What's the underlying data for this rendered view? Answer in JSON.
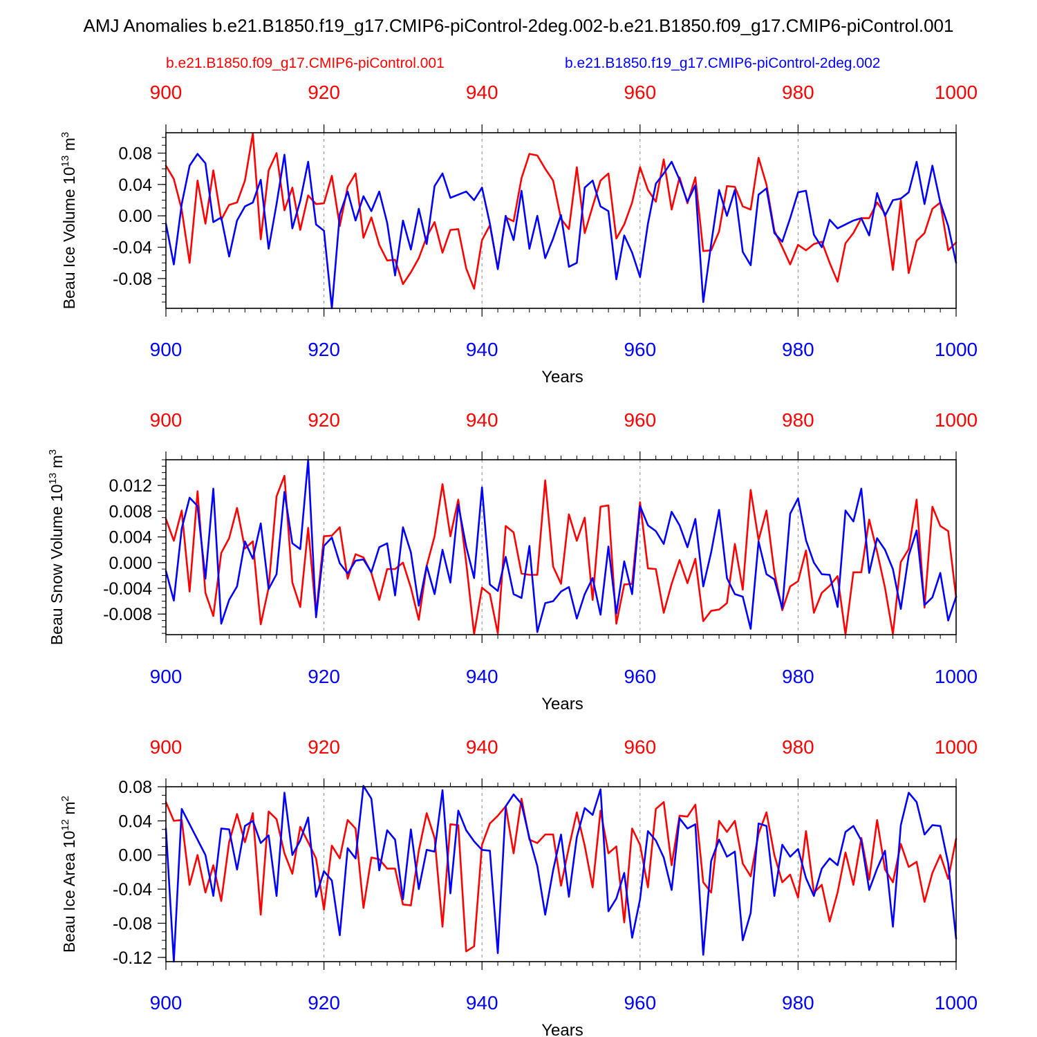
{
  "title": "AMJ Anomalies b.e21.B1850.f19_g17.CMIP6-piControl-2deg.002-b.e21.B1850.f09_g17.CMIP6-piControl.001",
  "legend": [
    {
      "name": "b.e21.B1850.f09_g17.CMIP6-piControl.001",
      "color": "#ff0000"
    },
    {
      "name": "b.e21.B1850.f19_g17.CMIP6-piControl-2deg.002",
      "color": "#0000ff"
    }
  ],
  "colors": {
    "red": "#ff0000",
    "blue": "#0000ff",
    "axis": "#000000",
    "grid": "#888888"
  },
  "chart_data": [
    {
      "type": "line",
      "id": "ice-volume",
      "ylabel_main": "Beau Ice Volume 10",
      "ylabel_exp": "13",
      "ylabel_unit": " m",
      "ylabel_unit_exp": "3",
      "xlabel": "Years",
      "xlim": [
        900,
        1000
      ],
      "ylim": [
        -0.118,
        0.106
      ],
      "xticks": [
        900,
        920,
        940,
        960,
        980,
        1000
      ],
      "xtick_labels": [
        "900",
        "920",
        "940",
        "960",
        "980",
        "1000"
      ],
      "yticks": [
        -0.08,
        -0.04,
        0.0,
        0.04,
        0.08
      ],
      "ytick_labels": [
        "-0.08",
        "-0.04",
        "0.00",
        "0.04",
        "0.08"
      ],
      "grid_x": [
        920,
        940,
        960,
        980
      ],
      "series": [
        {
          "name": "b.e21.B1850.f09_g17.CMIP6-piControl.001",
          "color": "#ff0000",
          "x0": 900,
          "values": [
            0.064,
            0.047,
            0.008,
            -0.06,
            0.045,
            -0.01,
            0.058,
            -0.005,
            0.014,
            0.017,
            0.045,
            0.105,
            -0.03,
            0.058,
            0.08,
            0.007,
            0.036,
            -0.018,
            0.026,
            0.015,
            0.016,
            0.051,
            -0.013,
            0.037,
            0.054,
            -0.028,
            -0.002,
            -0.037,
            -0.057,
            -0.056,
            -0.087,
            -0.072,
            -0.054,
            -0.027,
            -0.008,
            -0.047,
            -0.018,
            -0.017,
            -0.067,
            -0.093,
            -0.031,
            -0.012,
            -0.067,
            -0.002,
            -0.007,
            0.048,
            0.079,
            0.077,
            0.06,
            0.045,
            -0.004,
            -0.017,
            0.062,
            -0.022,
            0.012,
            0.045,
            0.054,
            -0.029,
            -0.011,
            0.017,
            0.062,
            0.033,
            0.018,
            0.072,
            0.008,
            0.049,
            0.016,
            0.049,
            -0.045,
            -0.044,
            -0.02,
            0.038,
            0.037,
            0.012,
            0.008,
            0.074,
            0.04,
            -0.019,
            -0.04,
            -0.062,
            -0.037,
            -0.044,
            -0.036,
            -0.033,
            -0.06,
            -0.084,
            -0.035,
            -0.022,
            -0.003,
            -0.003,
            0.017,
            0.003,
            -0.069,
            0.02,
            -0.073,
            -0.032,
            -0.022,
            0.009,
            0.017,
            -0.044,
            -0.034
          ]
        },
        {
          "name": "b.e21.B1850.f19_g17.CMIP6-piControl-2deg.002",
          "color": "#0000ff",
          "x0": 900,
          "values": [
            -0.01,
            -0.062,
            0.015,
            0.064,
            0.079,
            0.067,
            -0.008,
            -0.002,
            -0.052,
            -0.006,
            0.012,
            0.017,
            0.046,
            -0.042,
            0.015,
            0.078,
            -0.016,
            0.019,
            0.069,
            -0.011,
            -0.019,
            -0.118,
            0.002,
            0.031,
            -0.006,
            0.025,
            0.006,
            0.031,
            -0.009,
            -0.076,
            -0.006,
            -0.043,
            0.009,
            -0.036,
            0.038,
            0.054,
            0.023,
            0.027,
            0.031,
            0.02,
            0.036,
            -0.01,
            -0.068,
            0.0,
            -0.031,
            0.032,
            -0.042,
            0.0,
            -0.054,
            -0.029,
            0.001,
            -0.065,
            -0.06,
            0.036,
            0.045,
            0.012,
            0.006,
            -0.081,
            -0.025,
            -0.047,
            -0.078,
            -0.01,
            0.041,
            0.054,
            0.069,
            0.046,
            0.018,
            0.039,
            -0.11,
            -0.036,
            0.033,
            0.0,
            0.033,
            -0.046,
            -0.063,
            0.027,
            0.035,
            -0.022,
            -0.033,
            -0.003,
            0.03,
            0.032,
            -0.024,
            -0.04,
            -0.005,
            -0.016,
            -0.011,
            -0.006,
            -0.003,
            -0.025,
            0.029,
            0.0,
            0.02,
            0.022,
            0.03,
            0.069,
            0.015,
            0.064,
            0.017,
            -0.013,
            -0.06
          ]
        }
      ]
    },
    {
      "type": "line",
      "id": "snow-volume",
      "ylabel_main": "Beau Snow Volume 10",
      "ylabel_exp": "13",
      "ylabel_unit": " m",
      "ylabel_unit_exp": "3",
      "xlabel": "Years",
      "xlim": [
        900,
        1000
      ],
      "ylim": [
        -0.0112,
        0.016
      ],
      "xticks": [
        900,
        920,
        940,
        960,
        980,
        1000
      ],
      "xtick_labels": [
        "900",
        "920",
        "940",
        "960",
        "980",
        "1000"
      ],
      "yticks": [
        -0.008,
        -0.004,
        0.0,
        0.004,
        0.008,
        0.012
      ],
      "ytick_labels": [
        "-0.008",
        "-0.004",
        "0.000",
        "0.004",
        "0.008",
        "0.012"
      ],
      "grid_x": [
        920,
        940,
        960,
        980
      ],
      "series": [
        {
          "name": "b.e21.B1850.f09_g17.CMIP6-piControl.001",
          "color": "#ff0000",
          "x0": 900,
          "values": [
            0.0068,
            0.0034,
            0.0081,
            -0.0045,
            0.0111,
            -0.0047,
            -0.0083,
            0.0015,
            0.0038,
            0.0085,
            0.0022,
            0.0033,
            -0.0096,
            -0.0039,
            0.0103,
            0.0135,
            -0.0031,
            -0.0069,
            0.0054,
            -0.0081,
            0.0041,
            0.0042,
            0.0055,
            -0.0025,
            0.0013,
            0.0008,
            -0.0016,
            -0.0058,
            -0.001,
            -0.001,
            0.0,
            -0.0039,
            -0.0089,
            -0.0005,
            0.0041,
            0.0122,
            0.0041,
            0.0098,
            0.0,
            -0.0111,
            -0.0039,
            -0.0049,
            -0.011,
            0.0057,
            0.0047,
            -0.0017,
            -0.0019,
            -0.0019,
            0.0128,
            -0.0006,
            -0.0033,
            0.0075,
            0.0034,
            0.007,
            -0.0058,
            0.0087,
            0.0089,
            -0.0095,
            -0.0034,
            -0.0033,
            0.0094,
            -0.0009,
            -0.001,
            -0.0078,
            -0.0033,
            0.0004,
            -0.0032,
            0.0006,
            -0.0091,
            -0.0075,
            -0.0073,
            -0.0063,
            0.0029,
            -0.0042,
            0.0113,
            0.0035,
            0.0081,
            -0.0015,
            -0.0074,
            -0.0037,
            -0.0029,
            0.0019,
            -0.0078,
            -0.0047,
            -0.0036,
            -0.0021,
            -0.0112,
            -0.0015,
            -0.0015,
            0.0067,
            0.0017,
            -0.0039,
            -0.0111,
            0.0001,
            0.0021,
            0.0098,
            -0.007,
            0.0087,
            0.0057,
            0.0049,
            -0.0054
          ]
        },
        {
          "name": "b.e21.B1850.f19_g17.CMIP6-piControl-2deg.002",
          "color": "#0000ff",
          "x0": 900,
          "values": [
            -0.0013,
            -0.0059,
            0.0053,
            0.0101,
            0.0088,
            -0.0025,
            0.0115,
            -0.0095,
            -0.0058,
            -0.0037,
            0.0033,
            0.0006,
            0.0061,
            -0.0041,
            -0.0018,
            0.011,
            0.003,
            0.0021,
            0.016,
            -0.0085,
            0.0026,
            0.0039,
            -0.0001,
            -0.0017,
            0.0003,
            0.0005,
            -0.0015,
            0.0024,
            0.003,
            -0.0051,
            0.0055,
            0.0016,
            -0.0067,
            -0.0005,
            -0.0049,
            0.002,
            -0.0031,
            0.009,
            0.0025,
            -0.0024,
            0.0117,
            -0.0034,
            -0.0044,
            0.0009,
            -0.0049,
            -0.0055,
            0.0026,
            -0.0108,
            -0.0063,
            -0.006,
            -0.0045,
            -0.0038,
            -0.0087,
            -0.0049,
            -0.0024,
            -0.0081,
            0.0025,
            -0.0079,
            0.0002,
            -0.0049,
            0.0088,
            0.0058,
            0.0049,
            0.0029,
            0.0079,
            0.0058,
            0.0024,
            0.0068,
            -0.0037,
            0.0016,
            0.0082,
            -0.0024,
            -0.0049,
            -0.0053,
            -0.0103,
            0.0033,
            -0.0018,
            -0.0026,
            -0.0071,
            0.0076,
            0.01,
            0.0035,
            0.0,
            -0.0018,
            -0.0019,
            -0.0069,
            0.0081,
            0.0064,
            0.0115,
            -0.0016,
            0.0038,
            0.002,
            -0.001,
            -0.0072,
            0.0011,
            0.005,
            -0.0066,
            -0.0054,
            -0.0016,
            -0.009,
            -0.0053
          ]
        }
      ]
    },
    {
      "type": "line",
      "id": "ice-area",
      "ylabel_main": "Beau Ice Area 10",
      "ylabel_exp": "12",
      "ylabel_unit": " m",
      "ylabel_unit_exp": "2",
      "xlabel": "Years",
      "xlim": [
        900,
        1000
      ],
      "ylim": [
        -0.125,
        0.08
      ],
      "xticks": [
        900,
        920,
        940,
        960,
        980,
        1000
      ],
      "xtick_labels": [
        "900",
        "920",
        "940",
        "960",
        "980",
        "1000"
      ],
      "yticks": [
        -0.12,
        -0.08,
        -0.04,
        0.0,
        0.04,
        0.08
      ],
      "ytick_labels": [
        "-0.12",
        "-0.08",
        "-0.04",
        "0.00",
        "0.04",
        "0.08"
      ],
      "grid_x": [
        920,
        940,
        960,
        980
      ],
      "series": [
        {
          "name": "b.e21.B1850.f09_g17.CMIP6-piControl.001",
          "color": "#ff0000",
          "x0": 900,
          "values": [
            0.062,
            0.04,
            0.041,
            -0.035,
            0.0,
            -0.044,
            -0.012,
            -0.054,
            0.015,
            0.048,
            0.015,
            0.049,
            -0.07,
            0.051,
            0.042,
            0.002,
            -0.022,
            0.033,
            0.015,
            -0.004,
            -0.064,
            0.011,
            -0.004,
            0.041,
            0.031,
            -0.062,
            -0.003,
            -0.005,
            -0.016,
            -0.016,
            -0.058,
            -0.059,
            0.005,
            0.049,
            0.02,
            -0.084,
            0.036,
            0.035,
            -0.113,
            -0.107,
            0.012,
            0.037,
            0.046,
            0.057,
            0.002,
            0.066,
            0.018,
            0.014,
            0.024,
            0.024,
            -0.036,
            0.009,
            0.05,
            0.011,
            -0.038,
            0.052,
            0.002,
            0.01,
            -0.079,
            0.031,
            0.012,
            -0.038,
            0.054,
            0.062,
            -0.012,
            0.046,
            0.045,
            0.059,
            -0.032,
            -0.044,
            0.04,
            0.027,
            0.04,
            -0.01,
            -0.025,
            0.025,
            0.05,
            0.0,
            -0.032,
            -0.023,
            -0.05,
            0.028,
            -0.044,
            -0.035,
            -0.078,
            -0.044,
            0.003,
            -0.035,
            0.02,
            -0.029,
            0.041,
            -0.017,
            -0.032,
            0.013,
            -0.014,
            -0.008,
            -0.055,
            -0.021,
            0.0,
            -0.028,
            0.019
          ]
        },
        {
          "name": "b.e21.B1850.f19_g17.CMIP6-piControl-2deg.002",
          "color": "#0000ff",
          "x0": 900,
          "values": [
            0.031,
            -0.125,
            0.054,
            0.036,
            0.018,
            0.0,
            -0.048,
            0.031,
            0.03,
            -0.017,
            0.034,
            0.04,
            0.014,
            0.023,
            -0.048,
            0.073,
            0.0,
            0.017,
            0.044,
            -0.049,
            -0.019,
            -0.03,
            -0.094,
            0.008,
            -0.004,
            0.081,
            0.066,
            -0.018,
            0.029,
            0.018,
            -0.052,
            0.03,
            -0.04,
            0.006,
            0.004,
            0.076,
            -0.045,
            0.052,
            0.029,
            0.016,
            0.006,
            0.005,
            -0.115,
            0.057,
            0.071,
            0.06,
            0.02,
            -0.013,
            -0.07,
            -0.018,
            0.024,
            -0.049,
            0.021,
            0.055,
            0.047,
            0.077,
            -0.066,
            -0.051,
            -0.021,
            -0.097,
            -0.052,
            0.028,
            0.017,
            -0.003,
            -0.041,
            0.043,
            0.031,
            0.036,
            -0.117,
            -0.007,
            0.018,
            -0.002,
            0.004,
            -0.1,
            -0.068,
            0.037,
            0.034,
            -0.048,
            0.012,
            -0.002,
            0.007,
            -0.027,
            -0.048,
            -0.016,
            -0.004,
            -0.012,
            0.027,
            0.034,
            0.017,
            -0.041,
            -0.016,
            0.005,
            -0.084,
            0.035,
            0.073,
            0.062,
            0.024,
            0.035,
            0.034,
            -0.01,
            -0.098
          ]
        }
      ]
    }
  ]
}
